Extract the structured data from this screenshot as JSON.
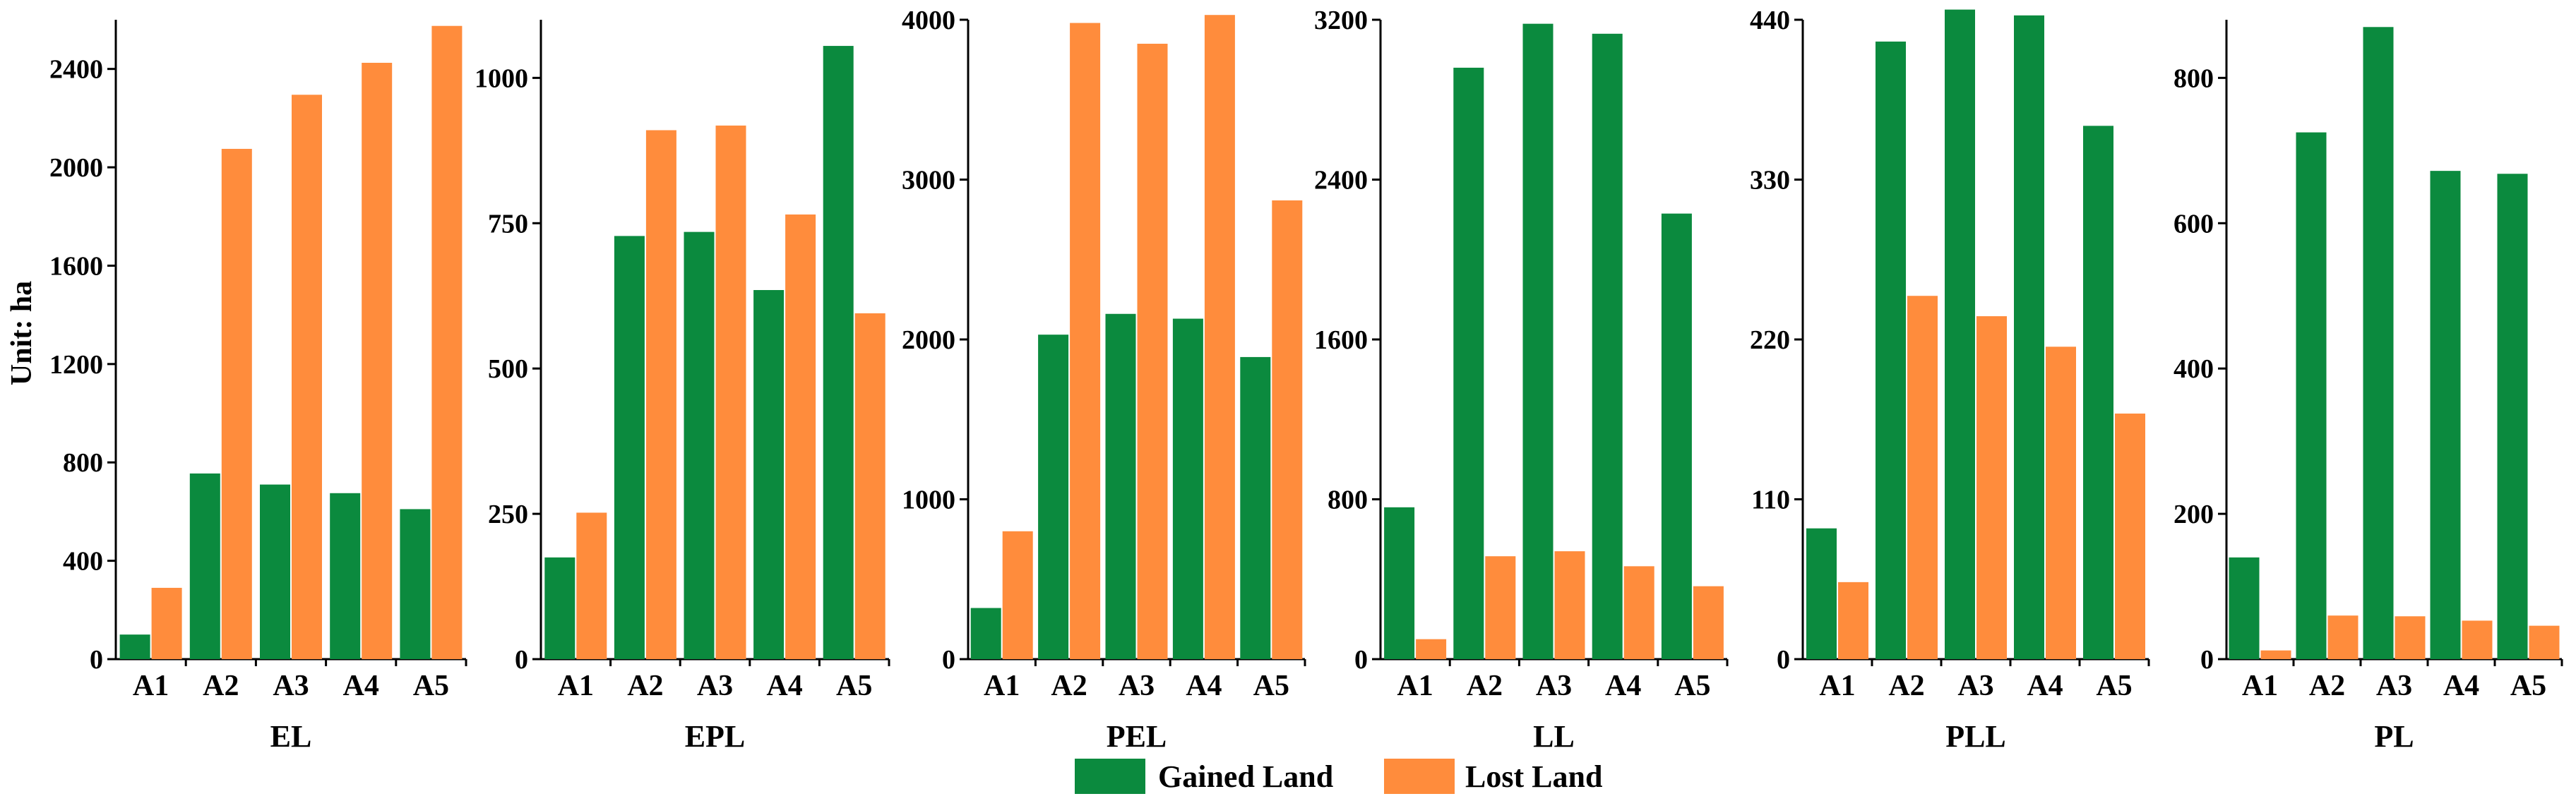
{
  "unit_label": "Unit: ha",
  "legend": [
    {
      "label": "Gained Land",
      "color": "#0b8a3e"
    },
    {
      "label": "Lost Land",
      "color": "#ff8c3c"
    }
  ],
  "chart_data": [
    {
      "type": "bar",
      "title": "EL",
      "categories": [
        "A1",
        "A2",
        "A3",
        "A4",
        "A5"
      ],
      "series": [
        {
          "name": "Gained Land",
          "values": [
            100,
            755,
            710,
            675,
            610
          ]
        },
        {
          "name": "Lost Land",
          "values": [
            290,
            2075,
            2295,
            2425,
            2575
          ]
        }
      ],
      "ylim": [
        0,
        2600
      ],
      "yticks": [
        0,
        400,
        800,
        1200,
        1600,
        2000,
        2400
      ]
    },
    {
      "type": "bar",
      "title": "EPL",
      "categories": [
        "A1",
        "A2",
        "A3",
        "A4",
        "A5"
      ],
      "series": [
        {
          "name": "Gained Land",
          "values": [
            175,
            728,
            735,
            635,
            1055
          ]
        },
        {
          "name": "Lost Land",
          "values": [
            252,
            910,
            918,
            765,
            595
          ]
        }
      ],
      "ylim": [
        0,
        1100
      ],
      "yticks": [
        0,
        250,
        500,
        750,
        1000
      ]
    },
    {
      "type": "bar",
      "title": "PEL",
      "categories": [
        "A1",
        "A2",
        "A3",
        "A4",
        "A5"
      ],
      "series": [
        {
          "name": "Gained Land",
          "values": [
            320,
            2030,
            2160,
            2130,
            1890
          ]
        },
        {
          "name": "Lost Land",
          "values": [
            800,
            3980,
            3850,
            4030,
            2870
          ]
        }
      ],
      "ylim": [
        0,
        4000
      ],
      "yticks": [
        0,
        1000,
        2000,
        3000,
        4000
      ]
    },
    {
      "type": "bar",
      "title": "LL",
      "categories": [
        "A1",
        "A2",
        "A3",
        "A4",
        "A5"
      ],
      "series": [
        {
          "name": "Gained Land",
          "values": [
            760,
            2960,
            3180,
            3130,
            2230
          ]
        },
        {
          "name": "Lost Land",
          "values": [
            100,
            515,
            540,
            465,
            365
          ]
        }
      ],
      "ylim": [
        0,
        3200
      ],
      "yticks": [
        0,
        800,
        1600,
        2400,
        3200
      ]
    },
    {
      "type": "bar",
      "title": "PLL",
      "categories": [
        "A1",
        "A2",
        "A3",
        "A4",
        "A5"
      ],
      "series": [
        {
          "name": "Gained Land",
          "values": [
            90,
            425,
            447,
            443,
            367
          ]
        },
        {
          "name": "Lost Land",
          "values": [
            53,
            250,
            236,
            215,
            169
          ]
        }
      ],
      "ylim": [
        0,
        440
      ],
      "yticks": [
        0,
        110,
        220,
        330,
        440
      ]
    },
    {
      "type": "bar",
      "title": "PL",
      "categories": [
        "A1",
        "A2",
        "A3",
        "A4",
        "A5"
      ],
      "series": [
        {
          "name": "Gained Land",
          "values": [
            140,
            725,
            870,
            672,
            668
          ]
        },
        {
          "name": "Lost Land",
          "values": [
            12,
            60,
            59,
            53,
            46
          ]
        }
      ],
      "ylim": [
        0,
        880
      ],
      "yticks": [
        0,
        200,
        400,
        600,
        800
      ]
    }
  ]
}
